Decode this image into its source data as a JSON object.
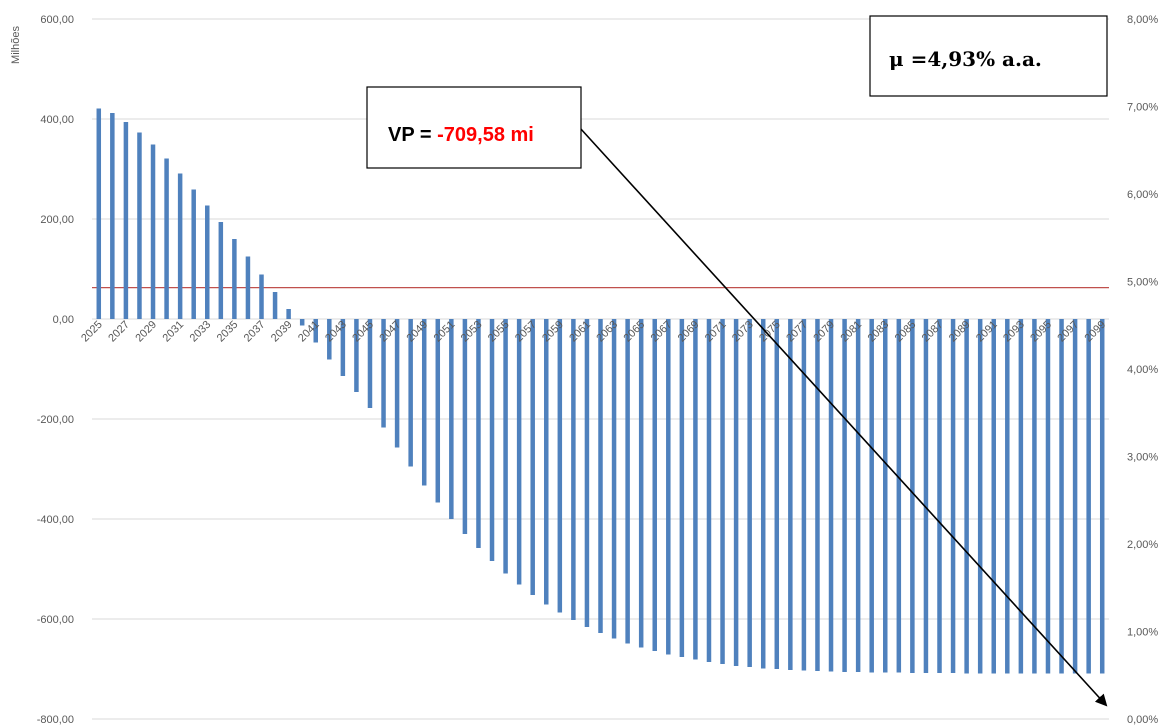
{
  "chart_data": {
    "type": "bar",
    "title": "",
    "xlabel": "",
    "ylabel": "Milhões",
    "ylim": [
      -800,
      600
    ],
    "y2lim": [
      0,
      8
    ],
    "yticks": [
      "600,00",
      "400,00",
      "200,00",
      "0,00",
      "-200,00",
      "-400,00",
      "-600,00",
      "-800,00"
    ],
    "y2ticks": [
      "8,00%",
      "7,00%",
      "6,00%",
      "5,00%",
      "4,00%",
      "3,00%",
      "2,00%",
      "1,00%",
      "0,00%"
    ],
    "x_start": 2025,
    "x_end": 2099,
    "x_labels": [
      "2025",
      "2027",
      "2029",
      "2031",
      "2033",
      "2035",
      "2037",
      "2039",
      "2041",
      "2043",
      "2045",
      "2047",
      "2049",
      "2051",
      "2053",
      "2055",
      "2057",
      "2059",
      "2061",
      "2063",
      "2065",
      "2067",
      "2069",
      "2071",
      "2073",
      "2075",
      "2077",
      "2079",
      "2081",
      "2083",
      "2085",
      "2087",
      "2089",
      "2091",
      "2093",
      "2095",
      "2097",
      "2099"
    ],
    "values": [
      421,
      412,
      394,
      373,
      349,
      321,
      291,
      259,
      227,
      194,
      160,
      125,
      89,
      54,
      20,
      -13,
      -47,
      -81,
      -114,
      -146,
      -178,
      -217,
      -257,
      -295,
      -333,
      -367,
      -400,
      -430,
      -458,
      -484,
      -509,
      -531,
      -552,
      -571,
      -587,
      -602,
      -616,
      -628,
      -639,
      -649,
      -657,
      -664,
      -671,
      -676,
      -681,
      -686,
      -690,
      -694,
      -696,
      -699,
      -700,
      -702,
      -703,
      -704,
      -705,
      -706,
      -706,
      -707,
      -707,
      -707,
      -708,
      -708,
      -708,
      -708,
      -709,
      -709,
      -709,
      -709,
      -709,
      -709,
      -709,
      -709,
      -709,
      -709,
      -709
    ],
    "bar_color": "#4F81BD",
    "reference_line_pct": 4.93,
    "reference_line_color": "#C0504D",
    "grid": true
  },
  "annotations": {
    "vp_label": "VP = ",
    "vp_value": "-709,58 mi",
    "vp_color": "#FF0000",
    "mu_text": "μ =4,93% a.a."
  }
}
